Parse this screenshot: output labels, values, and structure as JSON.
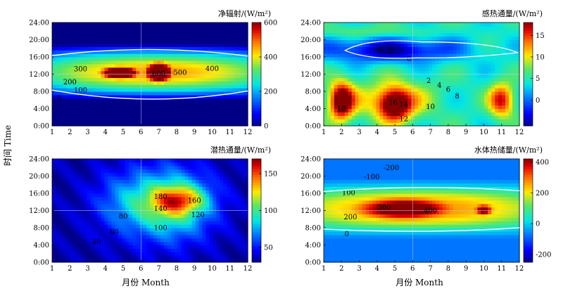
{
  "figure": {
    "ylabel_shared": "时间 Time",
    "xlabel": "月份 Month"
  },
  "chart_data": [
    {
      "type": "heatmap",
      "title": "净辐射/(W/m²)",
      "x_ticks": [
        "1",
        "2",
        "3",
        "4",
        "5",
        "6",
        "7",
        "8",
        "9",
        "10",
        "11",
        "12"
      ],
      "y_ticks": [
        "0:00",
        "4:00",
        "8:00",
        "12:00",
        "16:00",
        "20:00",
        "24:00"
      ],
      "xlim": [
        1,
        12
      ],
      "ylim": [
        0,
        24
      ],
      "colorbar": {
        "range": [
          0,
          600
        ],
        "ticks": [
          "0",
          "200",
          "400",
          "600"
        ]
      },
      "contour_labels": [
        {
          "text": "0",
          "x": 1.4,
          "y": 6.5
        },
        {
          "text": "100",
          "x": 2.6,
          "y": 8.3
        },
        {
          "text": "200",
          "x": 2.0,
          "y": 10.2
        },
        {
          "text": "300",
          "x": 2.6,
          "y": 13.2
        },
        {
          "text": "500",
          "x": 8.2,
          "y": 12.4
        },
        {
          "text": "600",
          "x": 7.0,
          "y": 12.2
        },
        {
          "text": "400",
          "x": 10.0,
          "y": 13.3
        }
      ],
      "features": [
        {
          "x": 7.0,
          "y": 12.5,
          "v": 630,
          "sx": 0.55,
          "sy": 1.7
        },
        {
          "x": 4.8,
          "y": 12.4,
          "v": 590,
          "sx": 0.8,
          "sy": 1.1
        }
      ]
    },
    {
      "type": "heatmap",
      "title": "感热通量/(W/m²)",
      "x_ticks": [
        "1",
        "2",
        "3",
        "4",
        "5",
        "6",
        "7",
        "8",
        "9",
        "10",
        "11",
        "12"
      ],
      "y_ticks": [
        "0:00",
        "4:00",
        "8:00",
        "12:00",
        "16:00",
        "20:00",
        "24:00"
      ],
      "xlim": [
        1,
        12
      ],
      "ylim": [
        0,
        24
      ],
      "colorbar": {
        "range": [
          -6,
          18
        ],
        "ticks": [
          "0",
          "5",
          "10",
          "15"
        ]
      },
      "contour_labels": [
        {
          "text": "-4",
          "x": 4.1,
          "y": 17.8
        },
        {
          "text": "-2",
          "x": 4.7,
          "y": 17.4
        },
        {
          "text": "0",
          "x": 5.8,
          "y": 15.6
        },
        {
          "text": "2",
          "x": 6.9,
          "y": 10.5
        },
        {
          "text": "4",
          "x": 7.5,
          "y": 9.5
        },
        {
          "text": "6",
          "x": 8.0,
          "y": 8.5
        },
        {
          "text": "8",
          "x": 8.5,
          "y": 6.9
        },
        {
          "text": "10",
          "x": 7.0,
          "y": 4.5
        },
        {
          "text": "16",
          "x": 4.9,
          "y": 5.5
        },
        {
          "text": "14",
          "x": 5.5,
          "y": 5.0
        },
        {
          "text": "12",
          "x": 5.5,
          "y": 1.6
        },
        {
          "text": "18",
          "x": 2.0,
          "y": 4.1
        }
      ],
      "features": [
        {
          "x": 5.0,
          "y": 5.0,
          "v": 17,
          "sx": 0.65,
          "sy": 2.6
        },
        {
          "x": 2.0,
          "y": 5.8,
          "v": 16,
          "sx": 0.45,
          "sy": 3.2
        },
        {
          "x": 11.0,
          "y": 6.0,
          "v": 15,
          "sx": 0.5,
          "sy": 2.8
        },
        {
          "x": 4.8,
          "y": 17.5,
          "v": -5,
          "sx": 2.2,
          "sy": 1.6
        }
      ]
    },
    {
      "type": "heatmap",
      "title": "潜热通量/(W/m²)",
      "x_ticks": [
        "1",
        "2",
        "3",
        "4",
        "5",
        "6",
        "7",
        "8",
        "9",
        "10",
        "11",
        "12"
      ],
      "y_ticks": [
        "0:00",
        "4:00",
        "8:00",
        "12:00",
        "16:00",
        "20:00",
        "24:00"
      ],
      "xlim": [
        1,
        12
      ],
      "ylim": [
        0,
        24
      ],
      "colorbar": {
        "range": [
          30,
          170
        ],
        "ticks": [
          "50",
          "100",
          "150"
        ]
      },
      "contour_labels": [
        {
          "text": "40",
          "x": 3.5,
          "y": 4.7
        },
        {
          "text": "60",
          "x": 4.5,
          "y": 7.0
        },
        {
          "text": "80",
          "x": 5.0,
          "y": 10.7
        },
        {
          "text": "100",
          "x": 7.1,
          "y": 8.0
        },
        {
          "text": "120",
          "x": 9.2,
          "y": 11.0
        },
        {
          "text": "140",
          "x": 7.1,
          "y": 12.5
        },
        {
          "text": "160",
          "x": 9.0,
          "y": 14.4
        },
        {
          "text": "180",
          "x": 7.1,
          "y": 15.3
        }
      ],
      "features": [
        {
          "x": 8.2,
          "y": 14.5,
          "v": 170,
          "sx": 1.0,
          "sy": 2.2
        }
      ]
    },
    {
      "type": "heatmap",
      "title": "水体热储量/(W/m²)",
      "x_ticks": [
        "1",
        "2",
        "3",
        "4",
        "5",
        "6",
        "7",
        "8",
        "9",
        "10",
        "11",
        "12"
      ],
      "y_ticks": [
        "0:00",
        "4:00",
        "8:00",
        "12:00",
        "16:00",
        "20:00",
        "24:00"
      ],
      "xlim": [
        1,
        12
      ],
      "ylim": [
        0,
        24
      ],
      "colorbar": {
        "range": [
          -250,
          420
        ],
        "ticks": [
          "-200",
          "0",
          "200",
          "400"
        ]
      },
      "contour_labels": [
        {
          "text": "0",
          "x": 2.3,
          "y": 6.6
        },
        {
          "text": "100",
          "x": 2.4,
          "y": 16.2
        },
        {
          "text": "200",
          "x": 2.5,
          "y": 10.5
        },
        {
          "text": "300",
          "x": 4.4,
          "y": 12.7
        },
        {
          "text": "400",
          "x": 7.0,
          "y": 12.0
        },
        {
          "text": "-100",
          "x": 3.7,
          "y": 19.8
        },
        {
          "text": "-200",
          "x": 4.8,
          "y": 22.0
        }
      ],
      "features": [
        {
          "x": 5.5,
          "y": 12.5,
          "v": 380,
          "sx": 1.8,
          "sy": 1.7
        },
        {
          "x": 10.0,
          "y": 12.2,
          "v": 350,
          "sx": 0.35,
          "sy": 0.9
        }
      ]
    }
  ]
}
